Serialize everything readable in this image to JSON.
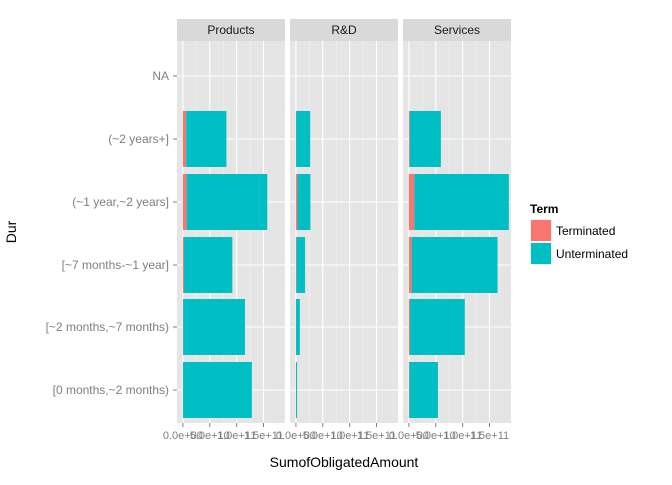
{
  "chart_data": {
    "type": "bar",
    "orientation": "horizontal",
    "stacked": true,
    "xlabel": "SumofObligatedAmount",
    "ylabel": "Dur",
    "legend": {
      "title": "Term",
      "position": "right",
      "entries": [
        {
          "name": "Terminated",
          "color": "#F8766D"
        },
        {
          "name": "Unterminated",
          "color": "#00BFC4"
        }
      ]
    },
    "categories": [
      "NA",
      "(~2 years+]",
      "(~1 year,~2 years]",
      "[~7 months-~1 year]",
      "[~2 months,~7 months)",
      "[0 months,~2 months)"
    ],
    "x_ticks": [
      0,
      50000000000,
      100000000000,
      150000000000
    ],
    "x_tick_labels": [
      "0.0e+00",
      "5.0e+10",
      "1.0e+11",
      "1.5e+11"
    ],
    "xlim": [
      -11000000000,
      190000000000
    ],
    "grid": true,
    "facets": [
      {
        "name": "Products",
        "series": [
          {
            "name": "Terminated",
            "values": [
              0,
              6000000000,
              7000000000,
              2000000000,
              500000000,
              300000000
            ]
          },
          {
            "name": "Unterminated",
            "values": [
              0,
              75000000000,
              150000000000,
              90000000000,
              115000000000,
              128000000000
            ]
          }
        ]
      },
      {
        "name": "R&D",
        "series": [
          {
            "name": "Terminated",
            "values": [
              0,
              500000000,
              3000000000,
              1000000000,
              300000000,
              200000000
            ]
          },
          {
            "name": "Unterminated",
            "values": [
              0,
              26000000000,
              24000000000,
              16000000000,
              7000000000,
              2000000000
            ]
          }
        ]
      },
      {
        "name": "Services",
        "series": [
          {
            "name": "Terminated",
            "values": [
              0,
              1500000000,
              10000000000,
              5000000000,
              2000000000,
              1000000000
            ]
          },
          {
            "name": "Unterminated",
            "values": [
              0,
              58000000000,
              176000000000,
              160000000000,
              102000000000,
              53000000000
            ]
          }
        ]
      }
    ]
  }
}
